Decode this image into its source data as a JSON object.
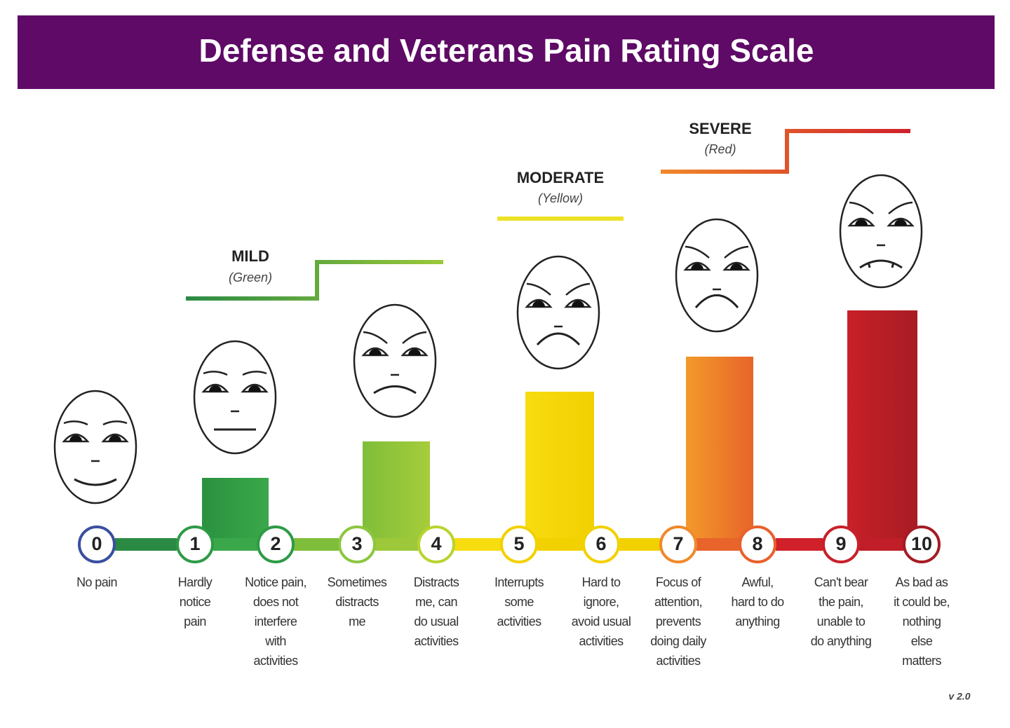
{
  "header": {
    "title": "Defense and Veterans Pain Rating Scale"
  },
  "bands": [
    {
      "label": "MILD",
      "color_name": "(Green)"
    },
    {
      "label": "MODERATE",
      "color_name": "(Yellow)"
    },
    {
      "label": "SEVERE",
      "color_name": "(Red)"
    }
  ],
  "levels": [
    {
      "number": 0,
      "description": [
        "No pain"
      ]
    },
    {
      "number": 1,
      "description": [
        "Hardly",
        "notice",
        "pain"
      ]
    },
    {
      "number": 2,
      "description": [
        "Notice pain,",
        "does not",
        "interfere",
        "with",
        "activities"
      ]
    },
    {
      "number": 3,
      "description": [
        "Sometimes",
        "distracts",
        "me"
      ]
    },
    {
      "number": 4,
      "description": [
        "Distracts",
        "me, can",
        "do usual",
        "activities"
      ]
    },
    {
      "number": 5,
      "description": [
        "Interrupts",
        "some",
        "activities"
      ]
    },
    {
      "number": 6,
      "description": [
        "Hard to",
        "ignore,",
        "avoid usual",
        "activities"
      ]
    },
    {
      "number": 7,
      "description": [
        "Focus of",
        "attention,",
        "prevents",
        "doing daily",
        "activities"
      ]
    },
    {
      "number": 8,
      "description": [
        "Awful,",
        "hard to do",
        "anything"
      ]
    },
    {
      "number": 9,
      "description": [
        "Can't bear",
        "the pain,",
        "unable to",
        "do anything"
      ]
    },
    {
      "number": 10,
      "description": [
        "As bad as",
        "it could be,",
        "nothing",
        "else",
        "matters"
      ]
    }
  ],
  "version": "v 2.0"
}
